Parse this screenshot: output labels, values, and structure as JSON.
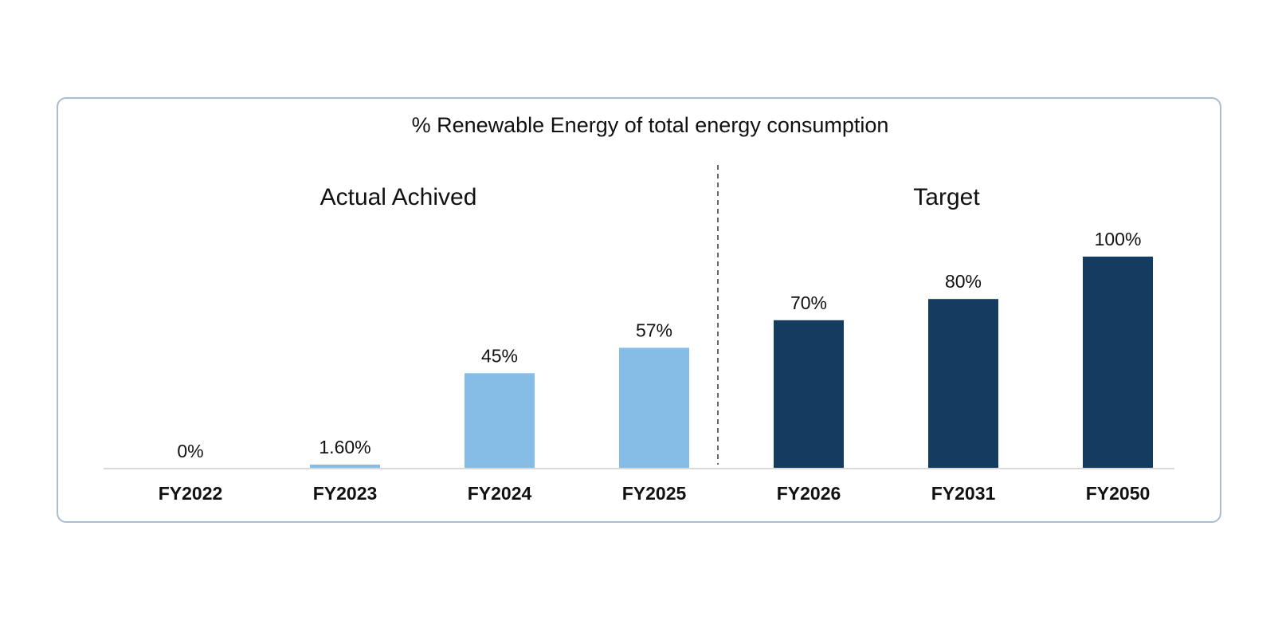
{
  "chart_data": {
    "type": "bar",
    "title": "% Renewable Energy of total energy consumption",
    "groups": [
      {
        "label": "Actual Achived",
        "categories": [
          "FY2022",
          "FY2023",
          "FY2024",
          "FY2025"
        ],
        "color": "#86bde6"
      },
      {
        "label": "Target",
        "categories": [
          "FY2026",
          "FY2031",
          "FY2050"
        ],
        "color": "#143c61"
      }
    ],
    "categories": [
      "FY2022",
      "FY2023",
      "FY2024",
      "FY2025",
      "FY2026",
      "FY2031",
      "FY2050"
    ],
    "values": [
      0,
      1.6,
      45,
      57,
      70,
      80,
      100
    ],
    "value_labels": [
      "0%",
      "1.60%",
      "45%",
      "57%",
      "70%",
      "80%",
      "100%"
    ],
    "ylim": [
      0,
      100
    ],
    "grid": false,
    "legend": "none",
    "divider": "dashed line between FY2025 and FY2026"
  }
}
